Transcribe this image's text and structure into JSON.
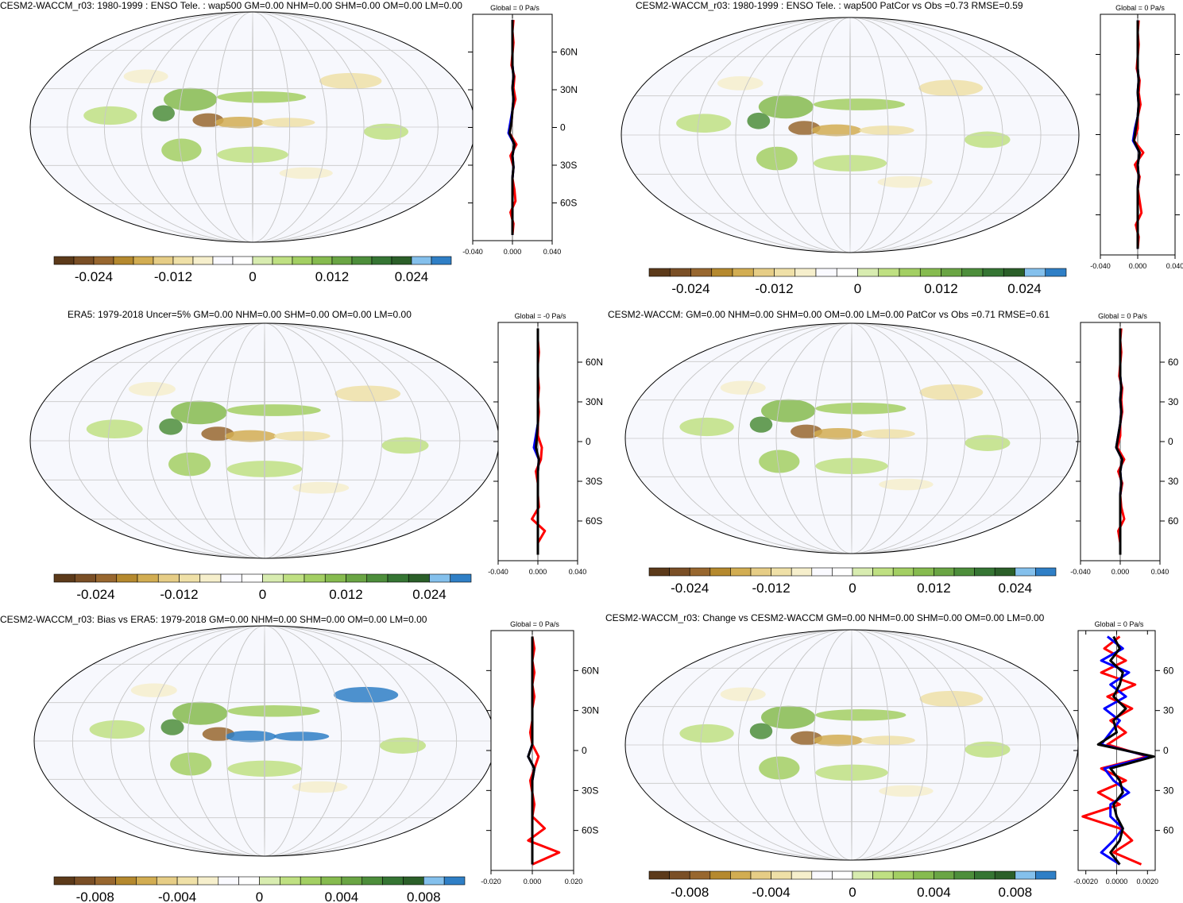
{
  "chart_data": [
    {
      "type": "map",
      "title": "CESM2-WACCM_r03: 1980-1999 : ENSO Tele. : wap500 GM=0.00 NHM=0.00 SHM=0.00 OM=0.00 LM=0.00",
      "zonal_title": "Global = 0 Pa/s",
      "lat_ticks": [
        "60N",
        "30N",
        "0",
        "30S",
        "60S"
      ],
      "zonal_xticks": [
        "-0.040",
        "0.000",
        "0.040"
      ],
      "zonal_xlim": [
        -0.04,
        0.04
      ],
      "colorbar_ticks": [
        "-0.024",
        "-0.012",
        "0",
        "0.012",
        "0.024"
      ],
      "colorbar_range": [
        -0.03,
        0.03
      ],
      "zonal_series": [
        {
          "name": "red",
          "color": "#ff0000",
          "values": [
            0.001,
            0.0,
            0.001,
            0.0,
            -0.001,
            0.002,
            0.001,
            0.003,
            0.0,
            -0.001,
            -0.003,
            0.004,
            -0.002,
            0.001,
            0.0,
            0.002,
            0.003,
            -0.002,
            0.001,
            0.0
          ]
        },
        {
          "name": "blue",
          "color": "#0000ff",
          "values": [
            0.0,
            0.0,
            0.0,
            0.0,
            0.0,
            0.001,
            0.0,
            0.001,
            0.0,
            -0.002,
            -0.004,
            0.002,
            0.0,
            0.001,
            0.0,
            0.0,
            0.0,
            0.0,
            0.0,
            0.0
          ]
        },
        {
          "name": "black",
          "color": "#000000",
          "values": [
            0.0,
            0.0,
            0.0,
            0.0,
            0.0,
            0.001,
            0.0,
            0.001,
            0.0,
            -0.001,
            -0.003,
            0.002,
            0.0,
            0.001,
            0.0,
            0.0,
            0.0,
            0.0,
            0.0,
            0.0
          ]
        }
      ]
    },
    {
      "type": "map",
      "title": "CESM2-WACCM_r03: 1980-1999 : ENSO Tele. : wap500 PatCor vs Obs =0.73 RMSE=0.59",
      "zonal_title": "Global = 0 Pa/s",
      "lat_ticks": [],
      "zonal_xticks": [
        "-0.040",
        "0.000",
        "0.040"
      ],
      "zonal_xlim": [
        -0.04,
        0.04
      ],
      "colorbar_ticks": [
        "-0.024",
        "-0.012",
        "0",
        "0.012",
        "0.024"
      ],
      "colorbar_range": [
        -0.03,
        0.03
      ],
      "zonal_series": [
        {
          "name": "red",
          "color": "#ff0000",
          "values": [
            0.001,
            0.0,
            0.001,
            0.0,
            -0.001,
            0.002,
            0.001,
            0.003,
            0.0,
            0.0,
            -0.004,
            0.006,
            -0.003,
            0.002,
            0.0,
            0.002,
            0.004,
            -0.002,
            0.001,
            0.0
          ]
        },
        {
          "name": "blue",
          "color": "#0000ff",
          "values": [
            0.0,
            0.0,
            0.0,
            0.0,
            0.0,
            0.001,
            0.0,
            0.001,
            0.0,
            -0.003,
            -0.005,
            0.002,
            0.0,
            0.001,
            0.0,
            0.0,
            0.0,
            0.0,
            0.0,
            0.0
          ]
        },
        {
          "name": "black",
          "color": "#000000",
          "values": [
            0.0,
            0.0,
            0.0,
            0.0,
            0.0,
            0.001,
            0.0,
            0.001,
            0.0,
            -0.002,
            -0.004,
            0.002,
            0.0,
            0.001,
            0.0,
            0.0,
            0.0,
            0.0,
            0.0,
            0.0
          ]
        }
      ]
    },
    {
      "type": "map",
      "title": "ERA5: 1979-2018 Uncer=5% GM=0.00 NHM=0.00 SHM=0.00 OM=0.00 LM=0.00",
      "zonal_title": "Global = -0 Pa/s",
      "lat_ticks": [
        "60N",
        "30N",
        "0",
        "30S",
        "60S"
      ],
      "zonal_xticks": [
        "-0.040",
        "0.000",
        "0.040"
      ],
      "zonal_xlim": [
        -0.04,
        0.04
      ],
      "colorbar_ticks": [
        "-0.024",
        "-0.012",
        "0",
        "0.012",
        "0.024"
      ],
      "colorbar_range": [
        -0.03,
        0.03
      ],
      "zonal_series": [
        {
          "name": "red",
          "color": "#ff0000",
          "values": [
            0.0,
            0.0,
            0.001,
            0.0,
            0.0,
            0.001,
            0.0,
            0.001,
            0.0,
            0.0,
            0.004,
            0.003,
            -0.002,
            0.0,
            0.0,
            0.001,
            -0.006,
            0.007,
            0.0,
            0.0
          ]
        },
        {
          "name": "blue",
          "color": "#0000ff",
          "values": [
            0.0,
            0.0,
            0.0,
            0.0,
            0.0,
            0.0,
            0.0,
            0.0,
            0.0,
            -0.002,
            -0.004,
            0.001,
            0.0,
            0.0,
            0.0,
            0.0,
            0.0,
            0.0,
            0.0,
            0.0
          ]
        },
        {
          "name": "black",
          "color": "#000000",
          "values": [
            0.0,
            0.0,
            0.0,
            0.0,
            0.0,
            0.0,
            0.0,
            0.0,
            0.0,
            -0.001,
            -0.002,
            0.001,
            0.0,
            0.0,
            0.0,
            0.0,
            0.0,
            0.0,
            0.0,
            0.0
          ]
        }
      ]
    },
    {
      "type": "map",
      "title": "CESM2-WACCM: GM=0.00 NHM=0.00 SHM=0.00 OM=0.00 LM=0.00 PatCor vs Obs =0.71 RMSE=0.61",
      "zonal_title": "Global = 0 Pa/s",
      "lat_ticks": [
        "60",
        "30",
        "0",
        "30",
        "60"
      ],
      "zonal_xticks": [
        "-0.040",
        "0.000",
        "0.040"
      ],
      "zonal_xlim": [
        -0.04,
        0.04
      ],
      "colorbar_ticks": [
        "-0.024",
        "-0.012",
        "0",
        "0.012",
        "0.024"
      ],
      "colorbar_range": [
        -0.03,
        0.03
      ],
      "zonal_series": [
        {
          "name": "red",
          "color": "#ff0000",
          "values": [
            0.001,
            0.0,
            0.001,
            0.0,
            -0.001,
            0.002,
            0.001,
            0.002,
            0.0,
            0.0,
            -0.003,
            0.004,
            -0.002,
            0.002,
            0.0,
            0.001,
            0.004,
            -0.002,
            0.0,
            0.0
          ]
        },
        {
          "name": "blue",
          "color": "#0000ff",
          "values": [
            0.0,
            0.0,
            0.0,
            0.0,
            0.0,
            0.001,
            0.0,
            0.001,
            0.0,
            -0.002,
            -0.004,
            0.002,
            0.0,
            0.001,
            0.0,
            0.0,
            0.0,
            0.0,
            0.0,
            0.0
          ]
        },
        {
          "name": "black",
          "color": "#000000",
          "values": [
            0.0,
            0.0,
            0.0,
            0.0,
            0.0,
            0.001,
            0.0,
            0.001,
            0.0,
            -0.002,
            -0.004,
            0.002,
            0.0,
            0.001,
            0.0,
            0.0,
            0.0,
            0.0,
            0.0,
            0.0
          ]
        }
      ]
    },
    {
      "type": "map",
      "title": "CESM2-WACCM_r03: Bias vs ERA5: 1979-2018 GM=0.00 NHM=0.00 SHM=0.00 OM=0.00 LM=0.00",
      "zonal_title": "Global = 0 Pa/s",
      "lat_ticks": [
        "60N",
        "30N",
        "0",
        "30S",
        "60S"
      ],
      "zonal_xticks": [
        "-0.020",
        "0.000",
        "0.020"
      ],
      "zonal_xlim": [
        -0.02,
        0.02
      ],
      "colorbar_ticks": [
        "-0.008",
        "-0.004",
        "0",
        "0.004",
        "0.008"
      ],
      "colorbar_range": [
        -0.01,
        0.01
      ],
      "zonal_series": [
        {
          "name": "red",
          "color": "#ff0000",
          "values": [
            0.0,
            0.001,
            0.0,
            0.001,
            0.0,
            0.001,
            0.0,
            0.0,
            -0.001,
            0.0,
            0.003,
            0.001,
            -0.001,
            0.0,
            0.001,
            0.0,
            0.006,
            -0.002,
            0.013,
            0.0
          ]
        },
        {
          "name": "blue",
          "color": "#0000ff",
          "values": [
            0.0,
            0.0,
            0.0,
            0.0,
            0.0,
            0.0,
            0.0,
            0.0,
            0.0,
            0.0,
            -0.002,
            0.001,
            0.0,
            0.0,
            0.0,
            0.0,
            0.0,
            0.0,
            0.0,
            0.0
          ]
        },
        {
          "name": "black",
          "color": "#000000",
          "values": [
            0.0,
            0.0,
            0.0,
            0.0,
            0.0,
            0.0,
            0.0,
            0.0,
            0.0,
            0.0,
            -0.002,
            0.001,
            0.0,
            0.0,
            0.0,
            0.0,
            0.0,
            0.0,
            0.0,
            0.0
          ]
        }
      ]
    },
    {
      "type": "map",
      "title": "CESM2-WACCM_r03: Change vs CESM2-WACCM GM=0.00 NHM=0.00 SHM=0.00 OM=0.00 LM=0.00",
      "zonal_title": "Global = 0 Pa/s",
      "lat_ticks": [
        "60",
        "30",
        "0",
        "30",
        "60"
      ],
      "zonal_xticks": [
        "-0.0020",
        "0.0000",
        "0.0020"
      ],
      "zonal_xlim": [
        -0.0025,
        0.0025
      ],
      "colorbar_ticks": [
        "-0.008",
        "-0.004",
        "0",
        "0.004",
        "0.008"
      ],
      "colorbar_range": [
        -0.01,
        0.01
      ],
      "zonal_series": [
        {
          "name": "red",
          "color": "#ff0000",
          "values": [
            0.0002,
            -0.0008,
            0.0006,
            -0.001,
            0.0012,
            -0.0006,
            0.001,
            -0.0004,
            0.0006,
            -0.0006,
            0.002,
            -0.001,
            0.0006,
            -0.0012,
            0.0002,
            -0.0022,
            0.0002,
            0.001,
            -0.0002,
            0.0016
          ]
        },
        {
          "name": "blue",
          "color": "#0000ff",
          "values": [
            -0.0006,
            0.0004,
            -0.001,
            0.0008,
            -0.0004,
            0.0006,
            -0.0008,
            0.0002,
            -0.0004,
            -0.001,
            0.0022,
            -0.0008,
            -0.0002,
            0.0008,
            -0.0004,
            -0.0004,
            0.0004,
            -0.0002,
            -0.001,
            0.0002
          ]
        },
        {
          "name": "black",
          "color": "#000000",
          "values": [
            -0.0002,
            0.0002,
            -0.0004,
            0.0004,
            0.0002,
            -0.0002,
            0.0006,
            -0.0002,
            0.0,
            -0.0012,
            0.0024,
            -0.0004,
            0.0002,
            0.0004,
            -0.0002,
            0.0,
            0.0004,
            0.0002,
            -0.0004,
            0.0002
          ]
        }
      ]
    }
  ],
  "colorbar_palette": [
    "#5c3a1a",
    "#7a4f26",
    "#98672f",
    "#b5892e",
    "#d2ad52",
    "#e6cd86",
    "#efe0a7",
    "#f6efcc",
    "#fafaff",
    "#ffffff",
    "#d8ecb0",
    "#bfe082",
    "#a3cf63",
    "#86bb4f",
    "#6aa544",
    "#4d8e3b",
    "#357533",
    "#2b5f29",
    "#84c0ec",
    "#2f7fc6"
  ]
}
